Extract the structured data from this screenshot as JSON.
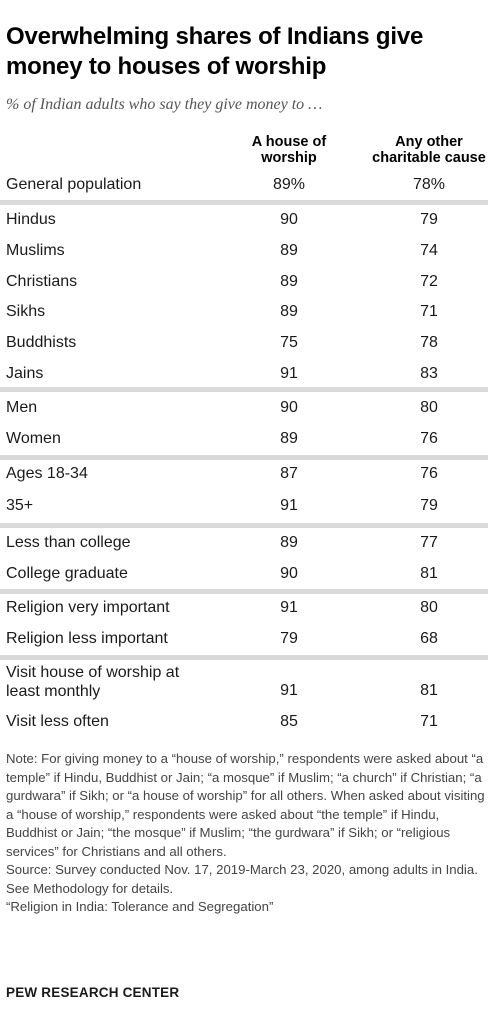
{
  "title": "Overwhelming shares of Indians give money to houses of worship",
  "subtitle": "% of Indian adults who say they give money to …",
  "chart_data": {
    "type": "table",
    "columns": [
      "A house of worship",
      "Any other charitable cause"
    ],
    "rows": [
      {
        "label": "General population",
        "values": [
          "89%",
          "78%"
        ]
      },
      {
        "label": "Hindus",
        "values": [
          "90",
          "79"
        ]
      },
      {
        "label": "Muslims",
        "values": [
          "89",
          "74"
        ]
      },
      {
        "label": "Christians",
        "values": [
          "89",
          "72"
        ]
      },
      {
        "label": "Sikhs",
        "values": [
          "89",
          "71"
        ]
      },
      {
        "label": "Buddhists",
        "values": [
          "75",
          "78"
        ]
      },
      {
        "label": "Jains",
        "values": [
          "91",
          "83"
        ]
      },
      {
        "label": "Men",
        "values": [
          "90",
          "80"
        ]
      },
      {
        "label": "Women",
        "values": [
          "89",
          "76"
        ]
      },
      {
        "label": "Ages 18-34",
        "values": [
          "87",
          "76"
        ]
      },
      {
        "label": "35+",
        "values": [
          "91",
          "79"
        ]
      },
      {
        "label": "Less than college",
        "values": [
          "89",
          "77"
        ]
      },
      {
        "label": "College graduate",
        "values": [
          "90",
          "81"
        ]
      },
      {
        "label": "Religion very important",
        "values": [
          "91",
          "80"
        ]
      },
      {
        "label": "Religion less important",
        "values": [
          "79",
          "68"
        ]
      },
      {
        "label": "Visit house of worship at least monthly",
        "values": [
          "91",
          "81"
        ]
      },
      {
        "label": "Visit less often",
        "values": [
          "85",
          "71"
        ]
      }
    ],
    "groups": [
      [
        0
      ],
      [
        1,
        2,
        3,
        4,
        5,
        6
      ],
      [
        7,
        8
      ],
      [
        9,
        10
      ],
      [
        11,
        12
      ],
      [
        13,
        14
      ],
      [
        15,
        16
      ]
    ]
  },
  "col_headers": {
    "worship_line1": "A house of",
    "worship_line2": "worship",
    "other_line1": "Any other",
    "other_line2": "charitable cause"
  },
  "note": "Note: For giving money to a “house of worship,” respondents were asked about “a temple” if Hindu, Buddhist or Jain; “a mosque” if Muslim; “a church” if Christian; “a gurdwara” if Sikh; or “a house of worship” for all others. When asked about visiting a “house of worship,” respondents were asked about “the temple” if Hindu, Buddhist or Jain; “the mosque” if Muslim; “the gurdwara” if Sikh; or “religious services” for Christians and all others.",
  "source": "Source: Survey conducted Nov. 17, 2019-March 23, 2020, among adults in India. See Methodology for details.",
  "report": "“Religion in India: Tolerance and Segregation”",
  "footer": "PEW RESEARCH CENTER",
  "colors": {
    "divider": "#d9d9d9",
    "text": "#1a1a1a",
    "subtitle": "#555555",
    "note": "#444444"
  }
}
